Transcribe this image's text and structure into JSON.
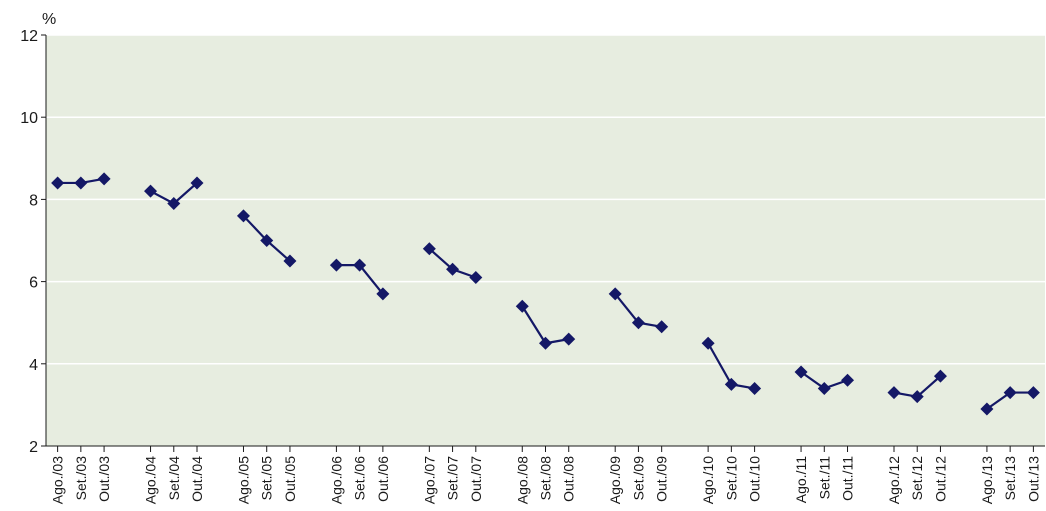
{
  "chart_data": {
    "type": "line",
    "title": "",
    "xlabel": "",
    "ylabel": "%",
    "ylim": [
      2,
      12
    ],
    "yticks": [
      2,
      4,
      6,
      8,
      10,
      12
    ],
    "grid": true,
    "colors": {
      "plot_background": "#e7ede0",
      "gridline": "#ffffff",
      "series": "#141866",
      "axis": "#1a1a1a"
    },
    "groups": [
      {
        "categories": [
          "Ago./03",
          "Set./03",
          "Out./03"
        ],
        "values": [
          8.4,
          8.4,
          8.5
        ]
      },
      {
        "categories": [
          "Ago./04",
          "Set./04",
          "Out./04"
        ],
        "values": [
          8.2,
          7.9,
          8.4
        ]
      },
      {
        "categories": [
          "Ago./05",
          "Set./05",
          "Out./05"
        ],
        "values": [
          7.6,
          7.0,
          6.5
        ]
      },
      {
        "categories": [
          "Ago./06",
          "Set./06",
          "Out./06"
        ],
        "values": [
          6.4,
          6.4,
          5.7
        ]
      },
      {
        "categories": [
          "Ago./07",
          "Set./07",
          "Out./07"
        ],
        "values": [
          6.8,
          6.3,
          6.1
        ]
      },
      {
        "categories": [
          "Ago./08",
          "Set./08",
          "Out./08"
        ],
        "values": [
          5.4,
          4.5,
          4.6
        ]
      },
      {
        "categories": [
          "Ago./09",
          "Set./09",
          "Out./09"
        ],
        "values": [
          5.7,
          5.0,
          4.9
        ]
      },
      {
        "categories": [
          "Ago./10",
          "Set./10",
          "Out./10"
        ],
        "values": [
          4.5,
          3.5,
          3.4
        ]
      },
      {
        "categories": [
          "Ago./11",
          "Set./11",
          "Out./11"
        ],
        "values": [
          3.8,
          3.4,
          3.6
        ]
      },
      {
        "categories": [
          "Ago./12",
          "Set./12",
          "Out./12"
        ],
        "values": [
          3.3,
          3.2,
          3.7
        ]
      },
      {
        "categories": [
          "Ago./13",
          "Set./13",
          "Out./13"
        ],
        "values": [
          2.9,
          3.3,
          3.3
        ]
      }
    ]
  }
}
